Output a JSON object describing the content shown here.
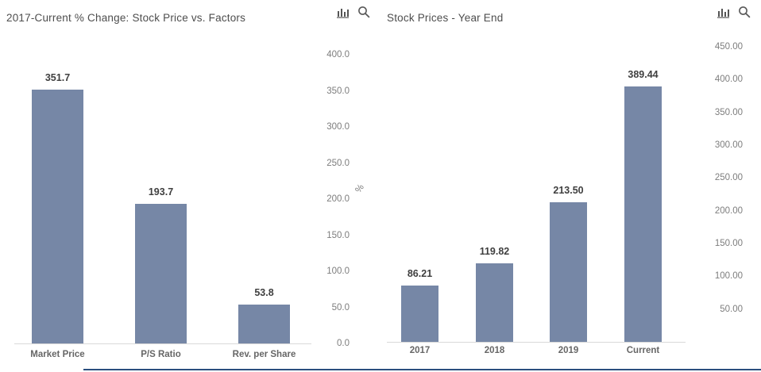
{
  "colors": {
    "bar": "#7687a6",
    "title": "#4d4d4d",
    "tick_label": "#7d7d7d",
    "value_label": "#3f3f3f",
    "category_label": "#666666",
    "axis_line": "#d9d9d9",
    "icon": "#555555",
    "bottom_rule": "#2b4f7e"
  },
  "toolbar": {
    "icons": [
      "bar-chart-icon",
      "zoom-icon"
    ]
  },
  "chart_data": [
    {
      "type": "bar",
      "title": "2017-Current % Change: Stock Price vs. Factors",
      "categories": [
        "Market Price",
        "P/S Ratio",
        "Rev. per Share"
      ],
      "values": [
        351.7,
        193.7,
        53.8
      ],
      "value_labels": [
        "351.7",
        "193.7",
        "53.8"
      ],
      "xlabel": "",
      "ylabel": "%",
      "ylim": [
        0,
        400
      ],
      "axis_side": "right",
      "grid": false,
      "legend": false,
      "yticks": [
        {
          "value": 400,
          "label": "400.0"
        },
        {
          "value": 350,
          "label": "350.0"
        },
        {
          "value": 300,
          "label": "300.0"
        },
        {
          "value": 250,
          "label": "250.0"
        },
        {
          "value": 200,
          "label": "200.0"
        },
        {
          "value": 150,
          "label": "150.0"
        },
        {
          "value": 100,
          "label": "100.0"
        },
        {
          "value": 50,
          "label": "50.0"
        },
        {
          "value": 0,
          "label": "0.0"
        }
      ]
    },
    {
      "type": "bar",
      "title": "Stock Prices - Year End",
      "categories": [
        "2017",
        "2018",
        "2019",
        "Current"
      ],
      "values": [
        86.21,
        119.82,
        213.5,
        389.44
      ],
      "value_labels": [
        "86.21",
        "119.82",
        "213.50",
        "389.44"
      ],
      "xlabel": "",
      "ylabel": "",
      "ylim": [
        0,
        450
      ],
      "axis_side": "right",
      "grid": false,
      "legend": false,
      "yticks": [
        {
          "value": 450,
          "label": "450.00"
        },
        {
          "value": 400,
          "label": "400.00"
        },
        {
          "value": 350,
          "label": "350.00"
        },
        {
          "value": 300,
          "label": "300.00"
        },
        {
          "value": 250,
          "label": "250.00"
        },
        {
          "value": 200,
          "label": "200.00"
        },
        {
          "value": 150,
          "label": "150.00"
        },
        {
          "value": 100,
          "label": "100.00"
        },
        {
          "value": 50,
          "label": "50.00"
        }
      ]
    }
  ]
}
